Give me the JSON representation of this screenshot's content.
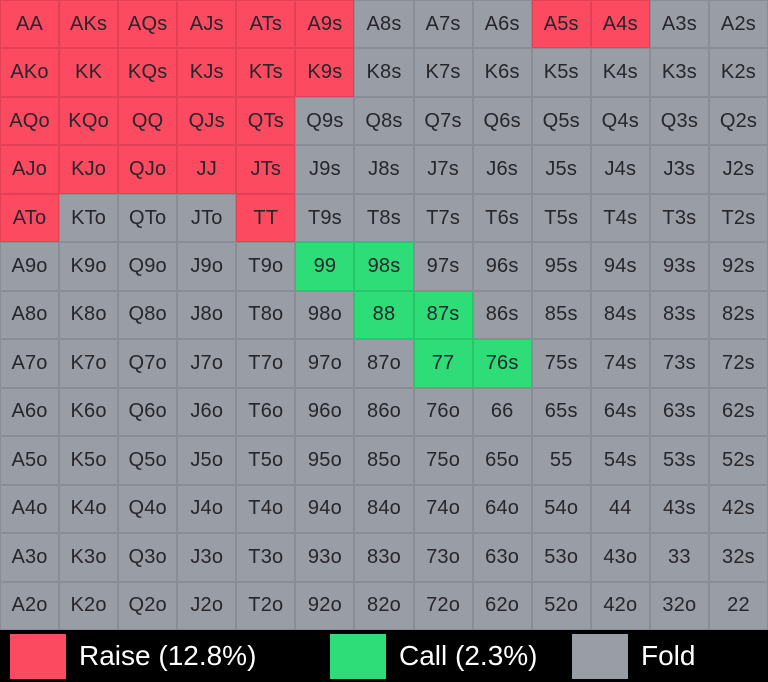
{
  "colors": {
    "raise": "#fc4a61",
    "call": "#2edc78",
    "fold": "#999da6",
    "cell_text": "#26262b",
    "legend_background": "#000000",
    "legend_text": "#ffffff"
  },
  "chart_data": {
    "type": "heatmap",
    "description": "13x13 poker preflop hand range matrix; each cell colored by action",
    "rows": [
      [
        "AA",
        "AKs",
        "AQs",
        "AJs",
        "ATs",
        "A9s",
        "A8s",
        "A7s",
        "A6s",
        "A5s",
        "A4s",
        "A3s",
        "A2s"
      ],
      [
        "AKo",
        "KK",
        "KQs",
        "KJs",
        "KTs",
        "K9s",
        "K8s",
        "K7s",
        "K6s",
        "K5s",
        "K4s",
        "K3s",
        "K2s"
      ],
      [
        "AQo",
        "KQo",
        "QQ",
        "QJs",
        "QTs",
        "Q9s",
        "Q8s",
        "Q7s",
        "Q6s",
        "Q5s",
        "Q4s",
        "Q3s",
        "Q2s"
      ],
      [
        "AJo",
        "KJo",
        "QJo",
        "JJ",
        "JTs",
        "J9s",
        "J8s",
        "J7s",
        "J6s",
        "J5s",
        "J4s",
        "J3s",
        "J2s"
      ],
      [
        "ATo",
        "KTo",
        "QTo",
        "JTo",
        "TT",
        "T9s",
        "T8s",
        "T7s",
        "T6s",
        "T5s",
        "T4s",
        "T3s",
        "T2s"
      ],
      [
        "A9o",
        "K9o",
        "Q9o",
        "J9o",
        "T9o",
        "99",
        "98s",
        "97s",
        "96s",
        "95s",
        "94s",
        "93s",
        "92s"
      ],
      [
        "A8o",
        "K8o",
        "Q8o",
        "J8o",
        "T8o",
        "98o",
        "88",
        "87s",
        "86s",
        "85s",
        "84s",
        "83s",
        "82s"
      ],
      [
        "A7o",
        "K7o",
        "Q7o",
        "J7o",
        "T7o",
        "97o",
        "87o",
        "77",
        "76s",
        "75s",
        "74s",
        "73s",
        "72s"
      ],
      [
        "A6o",
        "K6o",
        "Q6o",
        "J6o",
        "T6o",
        "96o",
        "86o",
        "76o",
        "66",
        "65s",
        "64s",
        "63s",
        "62s"
      ],
      [
        "A5o",
        "K5o",
        "Q5o",
        "J5o",
        "T5o",
        "95o",
        "85o",
        "75o",
        "65o",
        "55",
        "54s",
        "53s",
        "52s"
      ],
      [
        "A4o",
        "K4o",
        "Q4o",
        "J4o",
        "T4o",
        "94o",
        "84o",
        "74o",
        "64o",
        "54o",
        "44",
        "43s",
        "42s"
      ],
      [
        "A3o",
        "K3o",
        "Q3o",
        "J3o",
        "T3o",
        "93o",
        "83o",
        "73o",
        "63o",
        "53o",
        "43o",
        "33",
        "32s"
      ],
      [
        "A2o",
        "K2o",
        "Q2o",
        "J2o",
        "T2o",
        "92o",
        "82o",
        "72o",
        "62o",
        "52o",
        "42o",
        "32o",
        "22"
      ]
    ],
    "actions": {
      "raise": [
        "AA",
        "AKs",
        "AQs",
        "AJs",
        "ATs",
        "A9s",
        "A5s",
        "A4s",
        "AKo",
        "KK",
        "KQs",
        "KJs",
        "KTs",
        "K9s",
        "AQo",
        "KQo",
        "QQ",
        "QJs",
        "QTs",
        "AJo",
        "KJo",
        "QJo",
        "JJ",
        "JTs",
        "ATo",
        "TT"
      ],
      "call": [
        "99",
        "98s",
        "88",
        "87s",
        "77",
        "76s"
      ],
      "default": "fold"
    },
    "legend_position": "bottom"
  },
  "legend": {
    "items": [
      {
        "id": "raise",
        "label": "Raise (12.8%)",
        "color": "#fc4a61",
        "percent": 12.8
      },
      {
        "id": "call",
        "label": "Call (2.3%)",
        "color": "#2edc78",
        "percent": 2.3
      },
      {
        "id": "fold",
        "label": "Fold",
        "color": "#999da6"
      }
    ]
  }
}
